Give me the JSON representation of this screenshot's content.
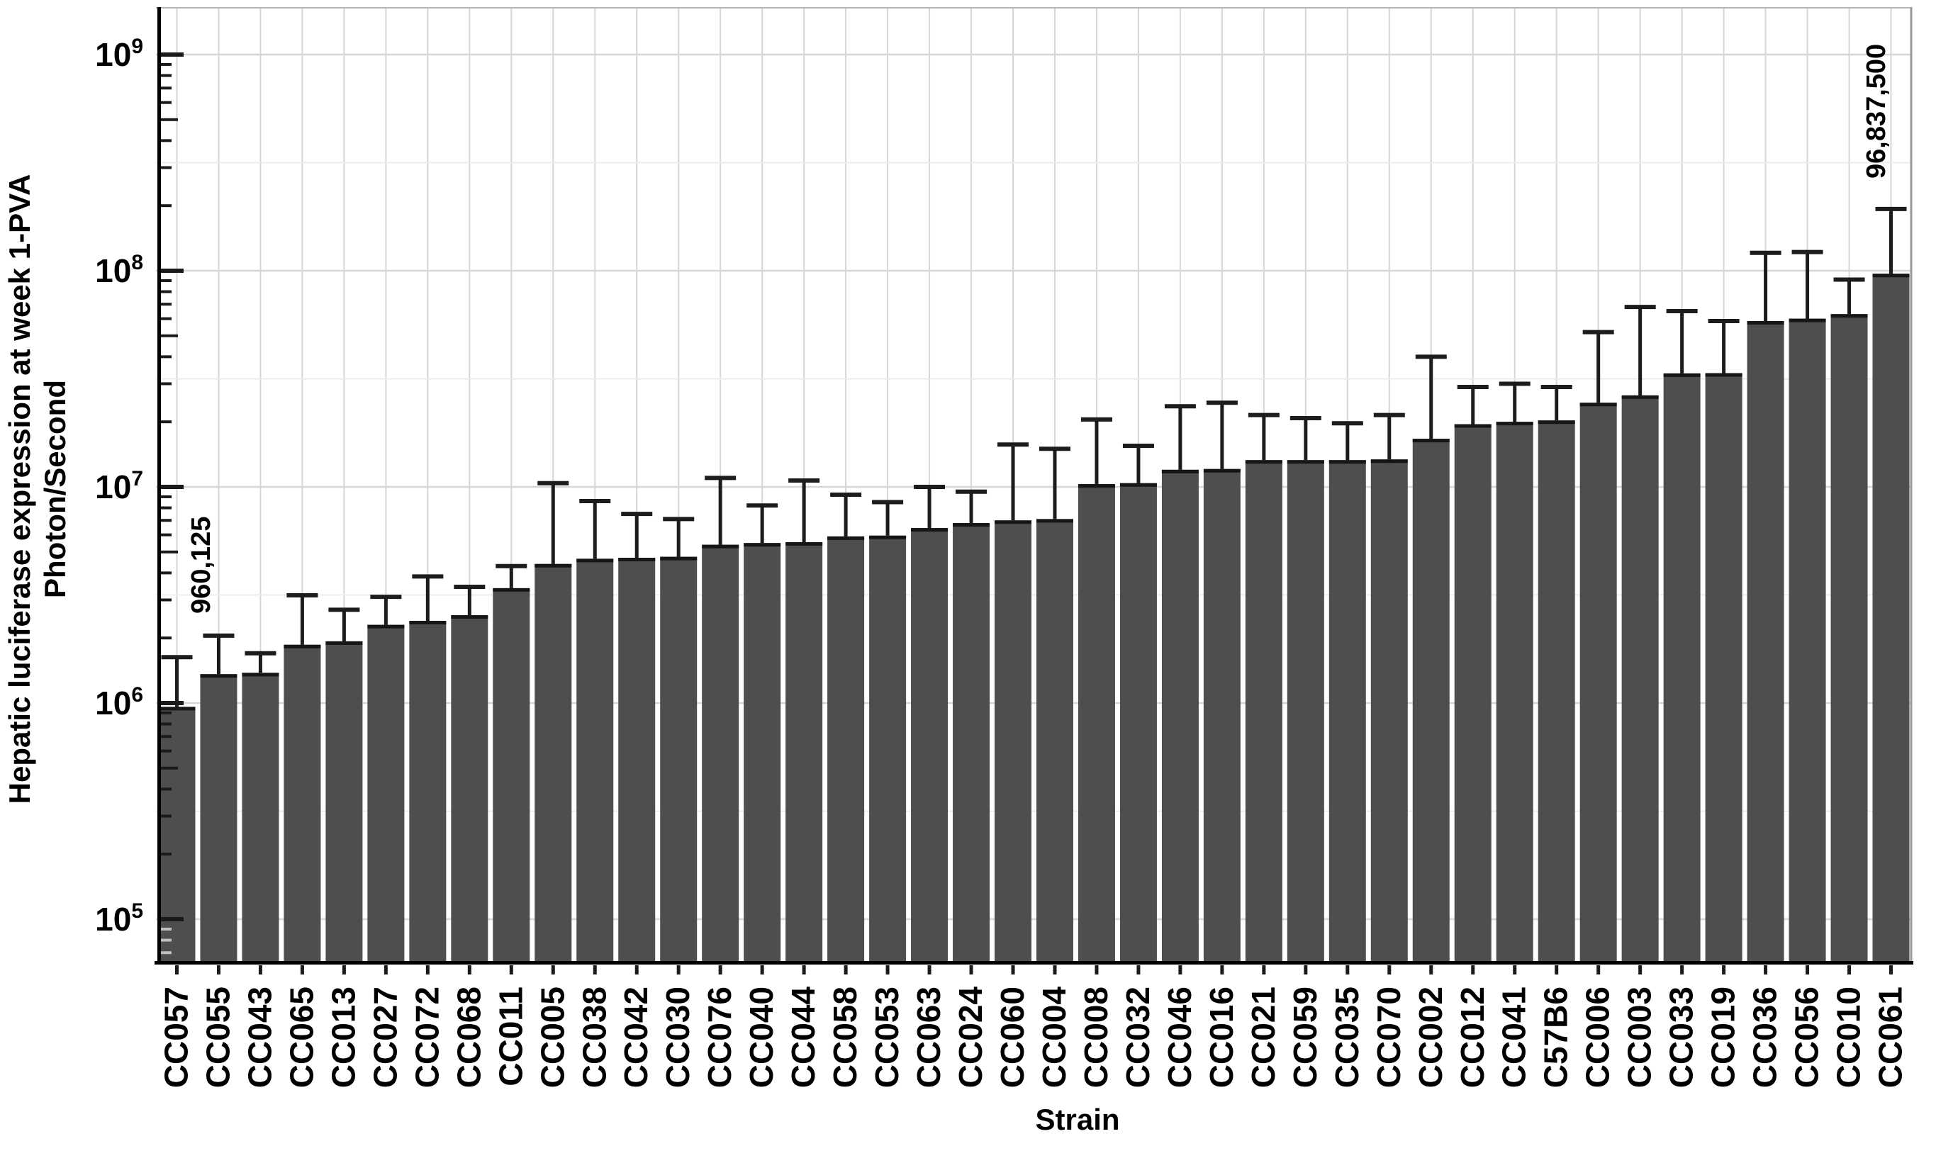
{
  "chart_data": {
    "type": "bar",
    "title": "",
    "xlabel": "Strain",
    "ylabel_line1": "Hepatic luciferase expression at week 1-PVA",
    "ylabel_line2": "Photon/Second",
    "yscale": "log",
    "ylim": [
      63000,
      1660000000
    ],
    "grid": "decade horizontal gridlines + vertical gridline per category",
    "legend": "none",
    "yticks": [
      {
        "base": "10",
        "exp": "5",
        "value": 100000
      },
      {
        "base": "10",
        "exp": "6",
        "value": 1000000
      },
      {
        "base": "10",
        "exp": "7",
        "value": 10000000
      },
      {
        "base": "10",
        "exp": "8",
        "value": 100000000
      },
      {
        "base": "10",
        "exp": "9",
        "value": 1000000000
      }
    ],
    "series_name": "Hepatic luciferase expression (Photon/Second), bar = mean, whisker = upper error bar",
    "series": [
      {
        "strain": "CC057",
        "value": 960125,
        "error_top": 1630000
      },
      {
        "strain": "CC055",
        "value": 1360000,
        "error_top": 2050000
      },
      {
        "strain": "CC043",
        "value": 1380000,
        "error_top": 1700000
      },
      {
        "strain": "CC065",
        "value": 1860000,
        "error_top": 3150000
      },
      {
        "strain": "CC013",
        "value": 1930000,
        "error_top": 2700000
      },
      {
        "strain": "CC027",
        "value": 2300000,
        "error_top": 3100000
      },
      {
        "strain": "CC072",
        "value": 2400000,
        "error_top": 3850000
      },
      {
        "strain": "CC068",
        "value": 2550000,
        "error_top": 3450000
      },
      {
        "strain": "CC011",
        "value": 3400000,
        "error_top": 4300000
      },
      {
        "strain": "CC005",
        "value": 4400000,
        "error_top": 10400000
      },
      {
        "strain": "CC038",
        "value": 4650000,
        "error_top": 8600000
      },
      {
        "strain": "CC042",
        "value": 4700000,
        "error_top": 7500000
      },
      {
        "strain": "CC030",
        "value": 4750000,
        "error_top": 7100000
      },
      {
        "strain": "CC076",
        "value": 5400000,
        "error_top": 11000000
      },
      {
        "strain": "CC040",
        "value": 5500000,
        "error_top": 8200000
      },
      {
        "strain": "CC044",
        "value": 5550000,
        "error_top": 10700000
      },
      {
        "strain": "CC058",
        "value": 5900000,
        "error_top": 9200000
      },
      {
        "strain": "CC053",
        "value": 5950000,
        "error_top": 8500000
      },
      {
        "strain": "CC063",
        "value": 6450000,
        "error_top": 10000000
      },
      {
        "strain": "CC024",
        "value": 6800000,
        "error_top": 9500000
      },
      {
        "strain": "CC060",
        "value": 7000000,
        "error_top": 15700000
      },
      {
        "strain": "CC004",
        "value": 7100000,
        "error_top": 15000000
      },
      {
        "strain": "CC008",
        "value": 10300000,
        "error_top": 20500000
      },
      {
        "strain": "CC032",
        "value": 10400000,
        "error_top": 15500000
      },
      {
        "strain": "CC046",
        "value": 12000000,
        "error_top": 23600000
      },
      {
        "strain": "CC016",
        "value": 12100000,
        "error_top": 24500000
      },
      {
        "strain": "CC021",
        "value": 13300000,
        "error_top": 21500000
      },
      {
        "strain": "CC059",
        "value": 13300000,
        "error_top": 20800000
      },
      {
        "strain": "CC035",
        "value": 13300000,
        "error_top": 19700000
      },
      {
        "strain": "CC070",
        "value": 13400000,
        "error_top": 21500000
      },
      {
        "strain": "CC002",
        "value": 16700000,
        "error_top": 40000000
      },
      {
        "strain": "CC012",
        "value": 19500000,
        "error_top": 29000000
      },
      {
        "strain": "CC041",
        "value": 20000000,
        "error_top": 30000000
      },
      {
        "strain": "C57B6",
        "value": 20300000,
        "error_top": 29000000
      },
      {
        "strain": "CC006",
        "value": 24500000,
        "error_top": 52000000
      },
      {
        "strain": "CC003",
        "value": 26500000,
        "error_top": 68000000
      },
      {
        "strain": "CC033",
        "value": 33500000,
        "error_top": 65000000
      },
      {
        "strain": "CC019",
        "value": 33600000,
        "error_top": 58500000
      },
      {
        "strain": "CC036",
        "value": 58500000,
        "error_top": 121000000
      },
      {
        "strain": "CC056",
        "value": 60000000,
        "error_top": 122000000
      },
      {
        "strain": "CC010",
        "value": 63000000,
        "error_top": 91000000
      },
      {
        "strain": "CC061",
        "value": 96837500,
        "error_top": 193000000
      }
    ],
    "annotations": [
      {
        "text": "960,125",
        "strain": "CC057",
        "position": "above error bar of lowest strain, rotated 90"
      },
      {
        "text": "96,837,500",
        "strain": "CC061",
        "position": "above error bar of highest strain, rotated 90"
      }
    ]
  },
  "colors": {
    "background": "#ffffff",
    "bar_fill": "#4e4e4e",
    "bar_edge": "#161616",
    "error_bar": "#1c1c1c",
    "gridline": "#d6d6d6",
    "gridline_minor": "#ececec",
    "axis": "#000000",
    "tick": "#1a1a1a",
    "tick_faded": "#c0c0c0",
    "frame": "#b5b5b5",
    "text": "#000000"
  }
}
